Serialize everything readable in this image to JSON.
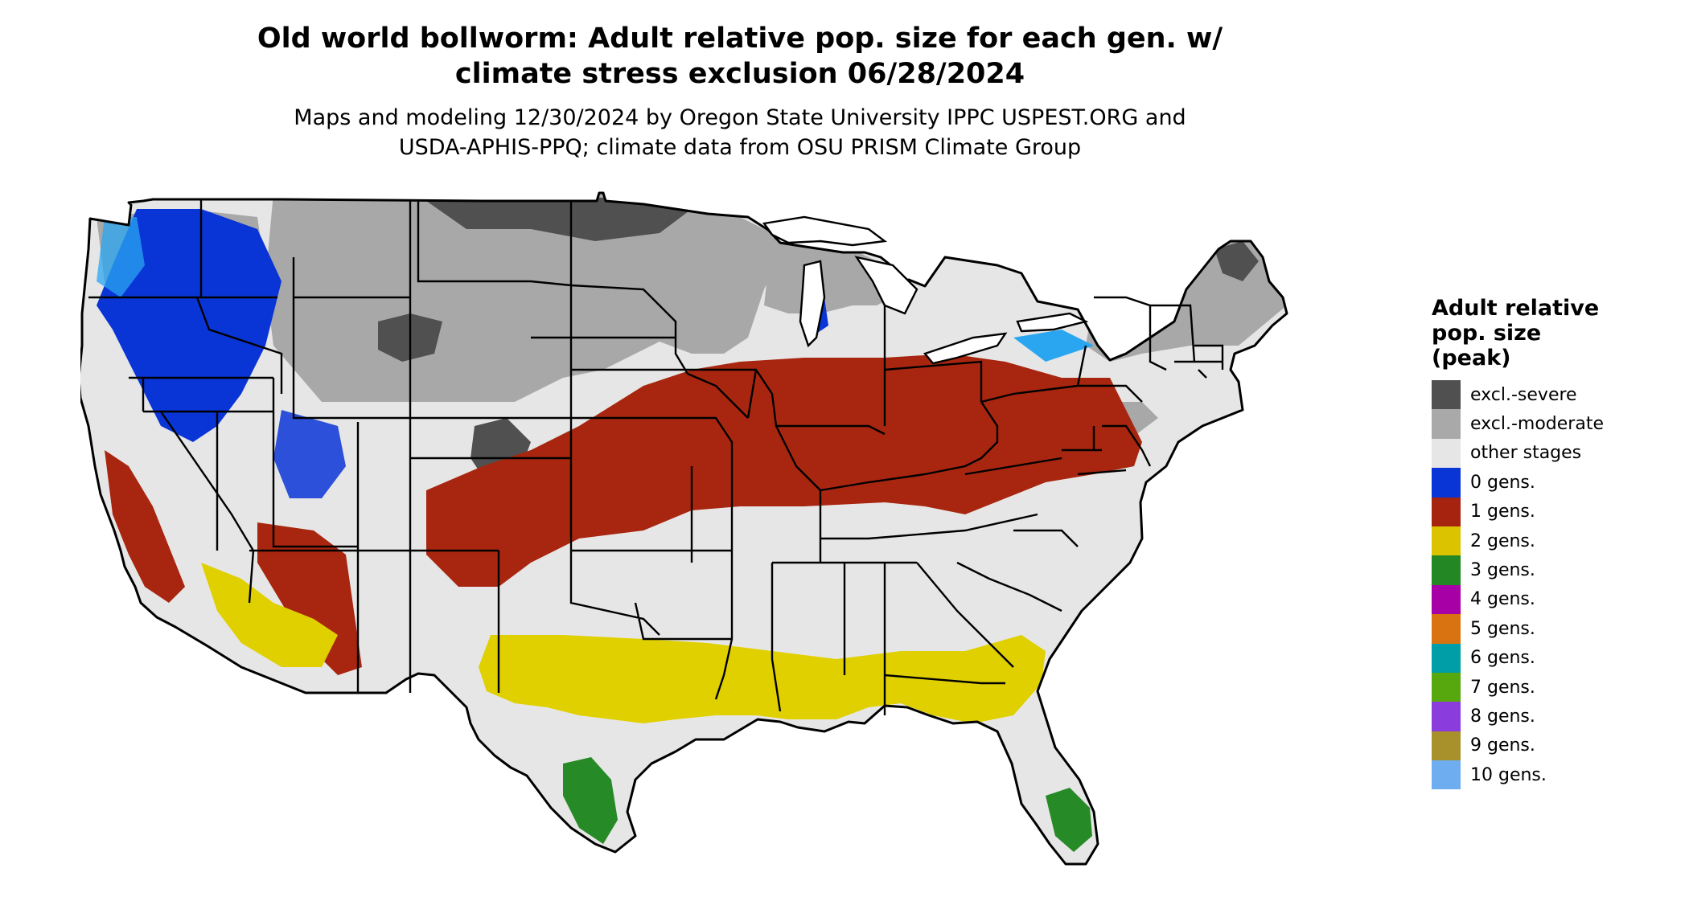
{
  "title_line1": "Old world bollworm: Adult relative pop. size for each gen. w/",
  "title_line2": "climate stress exclusion 06/28/2024",
  "subtitle_line1": "Maps and modeling 12/30/2024 by Oregon State University IPPC USPEST.ORG and",
  "subtitle_line2": "USDA-APHIS-PPQ; climate data from OSU PRISM Climate Group",
  "map": {
    "region": "contiguous-united-states",
    "colors": {
      "excl_severe": "#505050",
      "excl_moderate": "#a8a8a8",
      "other_stages": "#e6e6e6",
      "gen0": "#0033dd",
      "gen1": "#a8260f",
      "gen2": "#e0d000",
      "gen3": "#268a26",
      "outline": "#000000"
    }
  },
  "legend": {
    "title_line1": "Adult relative",
    "title_line2": "pop. size",
    "title_line3": "(peak)",
    "items": [
      {
        "label": "excl.-severe",
        "color": "#505050"
      },
      {
        "label": "excl.-moderate",
        "color": "#a9a9a9"
      },
      {
        "label": "other stages",
        "color": "#e6e6e6"
      },
      {
        "label": "0 gens.",
        "color": "#0a35d6"
      },
      {
        "label": "1 gens.",
        "color": "#a6230f"
      },
      {
        "label": "2 gens.",
        "color": "#dcc300"
      },
      {
        "label": "3 gens.",
        "color": "#238723"
      },
      {
        "label": "4 gens.",
        "color": "#a600a6"
      },
      {
        "label": "5 gens.",
        "color": "#d97312"
      },
      {
        "label": "6 gens.",
        "color": "#009ea6"
      },
      {
        "label": "7 gens.",
        "color": "#57a80e"
      },
      {
        "label": "8 gens.",
        "color": "#8a3ddc"
      },
      {
        "label": "9 gens.",
        "color": "#a8902a"
      },
      {
        "label": "10 gens.",
        "color": "#6eaef0"
      }
    ]
  }
}
